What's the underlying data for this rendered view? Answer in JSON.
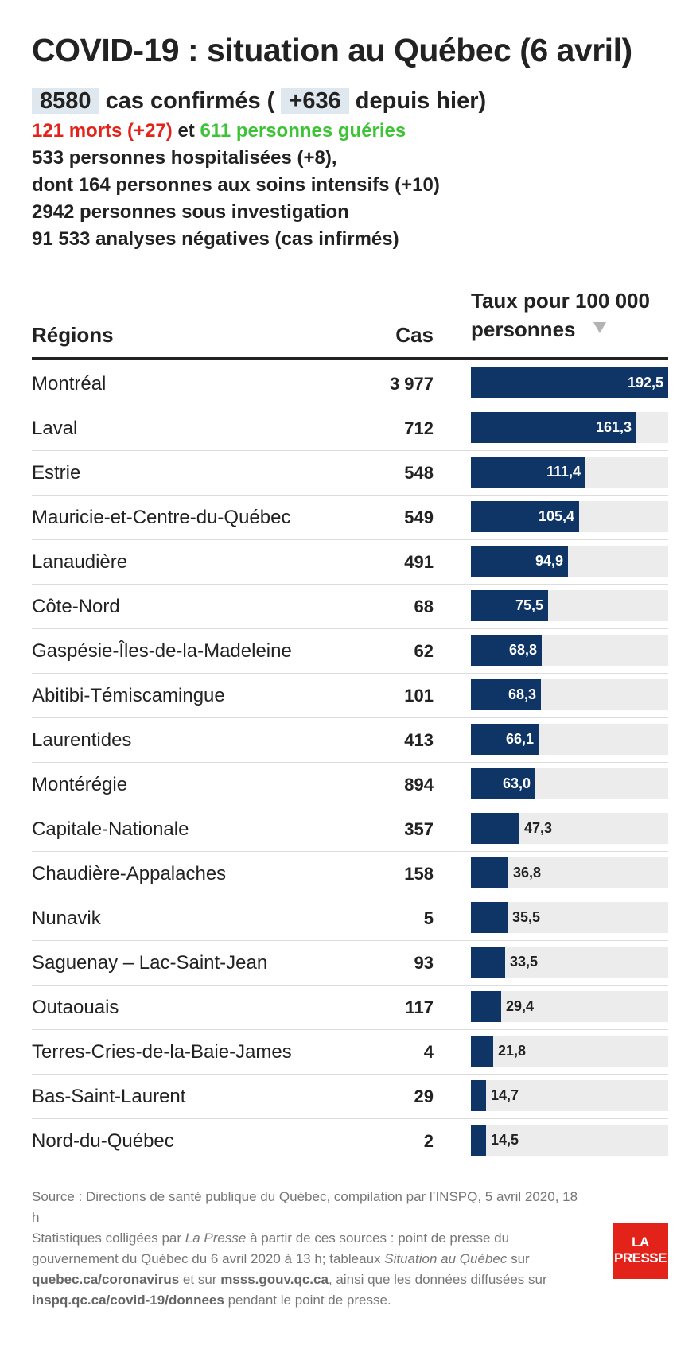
{
  "title": "COVID-19 : situation au Québec (6 avril)",
  "stats": {
    "confirmed": "8580",
    "confirmed_text": "cas confirmés (",
    "confirmed_delta": "+636",
    "confirmed_delta_text": "depuis hier)",
    "deaths": "121 morts (+27)",
    "and": "et",
    "recovered": "611 personnes guéries",
    "hospitalized": "533 personnes hospitalisées (+8),",
    "intensive": "dont 164 personnes aux soins intensifs (+10)",
    "investigation": "2942 personnes sous investigation",
    "negative": "91 533 analyses négatives (cas infirmés)"
  },
  "colors": {
    "bar": "#0e3566",
    "bar_background": "#ececec",
    "deaths": "#e32219",
    "recovered": "#3ec337",
    "highlight": "#dfe7ef",
    "logo": "#e32219"
  },
  "table": {
    "col_region": "Régions",
    "col_cases": "Cas",
    "col_rate_line1": "Taux pour 100 000",
    "col_rate_line2": "personnes",
    "sort_icon": "triangle-down"
  },
  "chart_data": {
    "type": "bar",
    "orientation": "horizontal",
    "max_value": 192.5,
    "sort": "descending by rate",
    "columns": [
      "Régions",
      "Cas",
      "Taux pour 100 000 personnes"
    ],
    "rows": [
      {
        "region": "Montréal",
        "cases": "3 977",
        "rate": 192.5,
        "rate_label": "192,5"
      },
      {
        "region": "Laval",
        "cases": "712",
        "rate": 161.3,
        "rate_label": "161,3"
      },
      {
        "region": "Estrie",
        "cases": "548",
        "rate": 111.4,
        "rate_label": "111,4"
      },
      {
        "region": "Mauricie-et-Centre-du-Québec",
        "cases": "549",
        "rate": 105.4,
        "rate_label": "105,4"
      },
      {
        "region": "Lanaudière",
        "cases": "491",
        "rate": 94.9,
        "rate_label": "94,9"
      },
      {
        "region": "Côte-Nord",
        "cases": "68",
        "rate": 75.5,
        "rate_label": "75,5"
      },
      {
        "region": "Gaspésie-Îles-de-la-Madeleine",
        "cases": "62",
        "rate": 68.8,
        "rate_label": "68,8"
      },
      {
        "region": "Abitibi-Témiscamingue",
        "cases": "101",
        "rate": 68.3,
        "rate_label": "68,3"
      },
      {
        "region": "Laurentides",
        "cases": "413",
        "rate": 66.1,
        "rate_label": "66,1"
      },
      {
        "region": "Montérégie",
        "cases": "894",
        "rate": 63.0,
        "rate_label": "63,0"
      },
      {
        "region": "Capitale-Nationale",
        "cases": "357",
        "rate": 47.3,
        "rate_label": "47,3"
      },
      {
        "region": "Chaudière-Appalaches",
        "cases": "158",
        "rate": 36.8,
        "rate_label": "36,8"
      },
      {
        "region": "Nunavik",
        "cases": "5",
        "rate": 35.5,
        "rate_label": "35,5"
      },
      {
        "region": "Saguenay – Lac-Saint-Jean",
        "cases": "93",
        "rate": 33.5,
        "rate_label": "33,5"
      },
      {
        "region": "Outaouais",
        "cases": "117",
        "rate": 29.4,
        "rate_label": "29,4"
      },
      {
        "region": "Terres-Cries-de-la-Baie-James",
        "cases": "4",
        "rate": 21.8,
        "rate_label": "21,8"
      },
      {
        "region": "Bas-Saint-Laurent",
        "cases": "29",
        "rate": 14.7,
        "rate_label": "14,7"
      },
      {
        "region": "Nord-du-Québec",
        "cases": "2",
        "rate": 14.5,
        "rate_label": "14,5"
      }
    ]
  },
  "footer": {
    "source": "Source : Directions de santé publique du Québec, compilation par l’INSPQ, 5 avril 2020, 18 h",
    "stats_prefix": "Statistiques colligées par",
    "publisher": "La Presse",
    "stats_middle": "à partir de ces sources : point de presse du gouvernement du Québec du 6 avril 2020 à 13 h; tableaux",
    "table_name": "Situation au Québec",
    "on": "sur",
    "url1": "quebec.ca/coronavirus",
    "and_on": "et sur",
    "url2": "msss.gouv.qc.ca",
    "data_text": ", ainsi que les données diffusées sur",
    "url3": "inspq.qc.ca/covid-19/donnees",
    "end_text": "pendant le point de presse."
  },
  "logo": {
    "line1": "LA",
    "line2": "PRESSE"
  }
}
